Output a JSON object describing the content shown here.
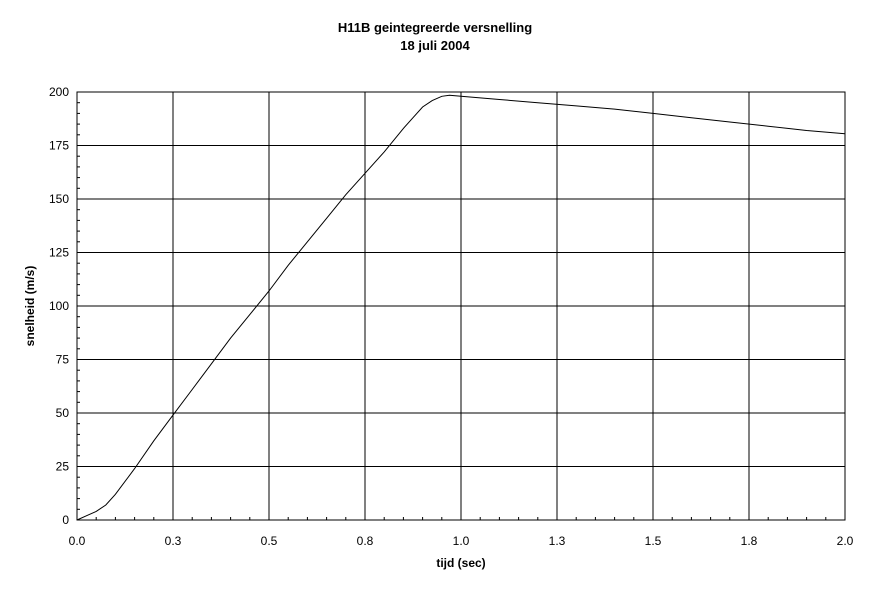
{
  "chart_data": {
    "type": "line",
    "title": "H11B geintegreerde versnelling",
    "subtitle": "18 juli 2004",
    "xlabel": "tijd (sec)",
    "ylabel": "snelheid (m/s)",
    "xlim": [
      0,
      2.0
    ],
    "ylim": [
      0,
      200
    ],
    "x_ticks": [
      0.0,
      0.25,
      0.5,
      0.75,
      1.0,
      1.25,
      1.5,
      1.75,
      2.0
    ],
    "x_tick_labels": [
      "0.0",
      "0.3",
      "0.5",
      "0.8",
      "1.0",
      "1.3",
      "1.5",
      "1.8",
      "2.0"
    ],
    "y_ticks": [
      0,
      25,
      50,
      75,
      100,
      125,
      150,
      175,
      200
    ],
    "y_tick_labels": [
      "0",
      "25",
      "50",
      "75",
      "100",
      "125",
      "150",
      "175",
      "200"
    ],
    "grid": true,
    "line_color": "#000000",
    "series": [
      {
        "x": [
          0.0,
          0.025,
          0.05,
          0.075,
          0.1,
          0.15,
          0.2,
          0.25,
          0.3,
          0.35,
          0.4,
          0.45,
          0.5,
          0.55,
          0.6,
          0.65,
          0.7,
          0.75,
          0.8,
          0.85,
          0.875,
          0.9,
          0.925,
          0.95,
          0.97,
          1.0,
          1.1,
          1.2,
          1.3,
          1.4,
          1.5,
          1.6,
          1.7,
          1.8,
          1.9,
          2.0
        ],
        "y": [
          0,
          2,
          4,
          7,
          12,
          24,
          37,
          49,
          61,
          73,
          85,
          96,
          107,
          119,
          130,
          141,
          152,
          162,
          172,
          183,
          188,
          193,
          196,
          198,
          198.5,
          198,
          196.5,
          195,
          193.5,
          192,
          190,
          188,
          186,
          184,
          182,
          180.5
        ]
      }
    ]
  }
}
